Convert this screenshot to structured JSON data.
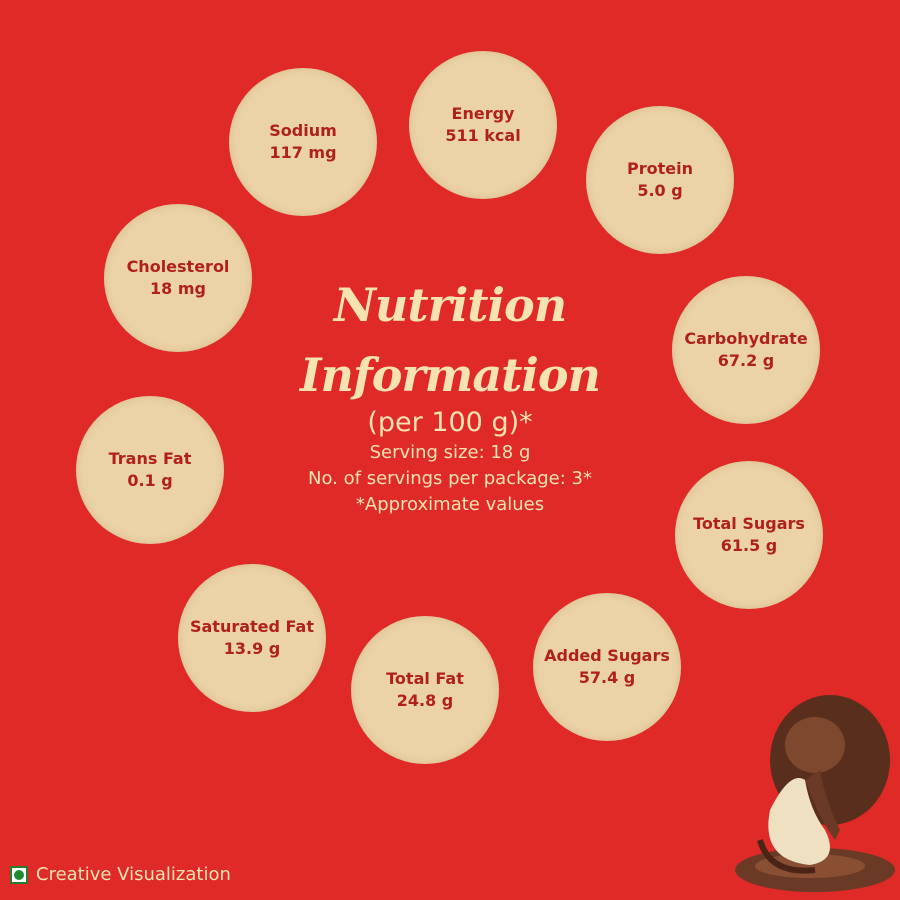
{
  "title_line1": "Nutrition",
  "title_line2": "Information",
  "per": "(per 100 g)*",
  "serving_size": "Serving size: 18 g",
  "servings_per_package": "No. of servings per package: 3*",
  "approx_note": "*Approximate values",
  "nutrients": [
    {
      "label": "Energy",
      "value": "511 kcal"
    },
    {
      "label": "Sodium",
      "value": "117 mg"
    },
    {
      "label": "Protein",
      "value": "5.0 g"
    },
    {
      "label": "Cholesterol",
      "value": "18 mg"
    },
    {
      "label": "Carbohydrate",
      "value": "67.2 g"
    },
    {
      "label": "Trans Fat",
      "value": "0.1 g"
    },
    {
      "label": "Total Sugars",
      "value": "61.5 g"
    },
    {
      "label": "Saturated Fat",
      "value": "13.9 g"
    },
    {
      "label": "Added Sugars",
      "value": "57.4 g"
    },
    {
      "label": "Total Fat",
      "value": "24.8 g"
    }
  ],
  "footer": {
    "label": "Creative Visualization",
    "icon": "veg-mark-icon"
  },
  "colors": {
    "background": "#df2a27",
    "bubble": "#ebd3a7",
    "bubble_text": "#b0211d",
    "title": "#f7e2b2"
  }
}
